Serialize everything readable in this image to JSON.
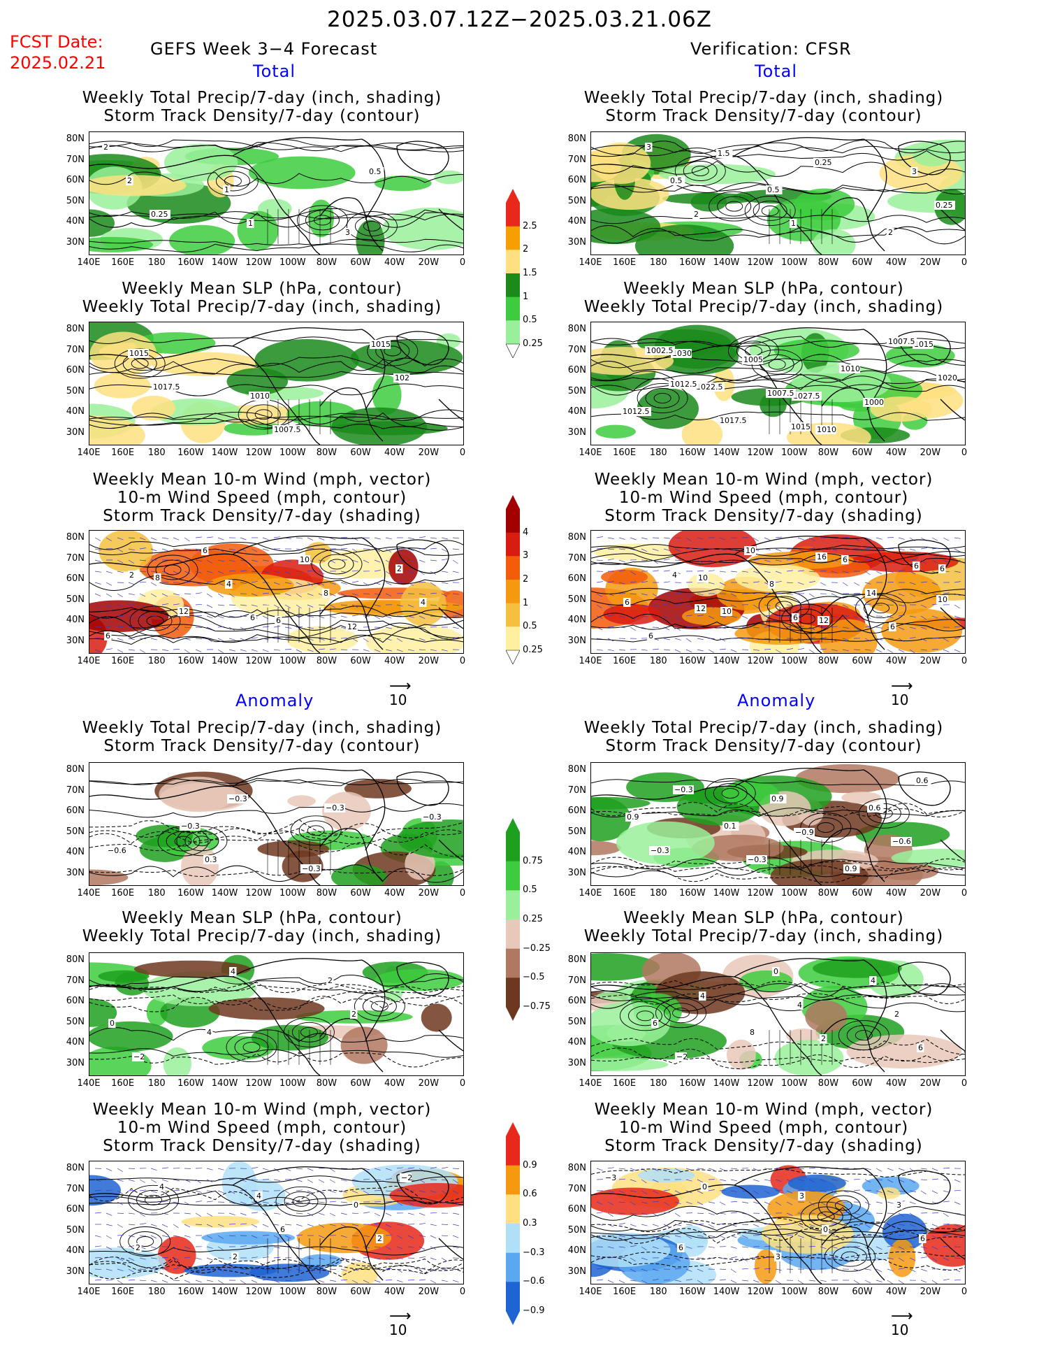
{
  "title": "2025.03.07.12Z−2025.03.21.06Z",
  "fcst_label": "FCST Date:",
  "fcst_date": "2025.02.21",
  "left_header": "GEFS Week 3−4 Forecast",
  "right_header": "Verification: CFSR",
  "section_total": "Total",
  "section_anomaly": "Anomaly",
  "panel_titles": {
    "precip_storm": [
      "Weekly Total Precip/7-day (inch, shading)",
      "Storm Track Density/7-day (contour)"
    ],
    "slp_precip": [
      "Weekly Mean SLP (hPa, contour)",
      "Weekly Total Precip/7-day (inch, shading)"
    ],
    "wind_storm": [
      "Weekly Mean 10-m Wind (mph, vector)",
      "10-m Wind Speed (mph, contour)",
      "Storm Track Density/7-day (shading)"
    ]
  },
  "lat_labels": [
    "80N",
    "70N",
    "60N",
    "50N",
    "40N",
    "30N"
  ],
  "lon_labels": [
    "140E",
    "160E",
    "180",
    "160W",
    "140W",
    "120W",
    "100W",
    "80W",
    "60W",
    "40W",
    "20W",
    "0"
  ],
  "vector_ref": "10",
  "colorbars": {
    "precip_total": {
      "labels": [
        "2.5",
        "2",
        "1.5",
        "1",
        "0.5",
        "0.25"
      ],
      "colors": [
        "#e8281a",
        "#f5a000",
        "#fee080",
        "#1a8a1a",
        "#3ecc3e",
        "#9af09a"
      ]
    },
    "storm_total": {
      "labels": [
        "4",
        "3",
        "2",
        "1",
        "0.5",
        "0.25"
      ],
      "colors": [
        "#a30000",
        "#d91c10",
        "#f25c0a",
        "#f59a10",
        "#f5c040",
        "#fff0a0"
      ]
    },
    "precip_anom": {
      "labels": [
        "0.75",
        "0.5",
        "0.25",
        "−0.25",
        "−0.5",
        "−0.75"
      ],
      "colors": [
        "#1ea01e",
        "#3ecc3e",
        "#9af09a",
        "#e8c8b8",
        "#b07860",
        "#6e3820"
      ]
    },
    "storm_anom": {
      "labels": [
        "0.9",
        "0.6",
        "0.3",
        "−0.3",
        "−0.6",
        "−0.9"
      ],
      "colors": [
        "#e8281a",
        "#f59a10",
        "#fee080",
        "#b0e0f8",
        "#5aa8f0",
        "#1e64d2"
      ]
    }
  },
  "contour_labels": {
    "f_tot_precip": [
      "2",
      "1",
      "3",
      "2",
      "1",
      "0.5",
      "0.25"
    ],
    "v_tot_precip": [
      "3",
      "0.5",
      "2",
      "0.5",
      "1",
      "3",
      "2",
      "0.25",
      "0.25",
      "1.5"
    ],
    "f_tot_slp": [
      "1015",
      "1010",
      "1015",
      "1017.5",
      "1007.5",
      "102"
    ],
    "v_tot_slp": [
      "1030",
      "1027.5",
      "1015",
      "1022.5",
      "1010",
      "1020",
      "1017.5",
      "1010",
      "1012.5",
      "1005",
      "1000",
      "1002.5",
      "1007.5",
      "1007.5",
      "1012.5",
      "1015"
    ],
    "f_tot_wind": [
      "8",
      "6",
      "2",
      "12",
      "10",
      "4",
      "6",
      "8",
      "6",
      "4",
      "12",
      "2",
      "6"
    ],
    "v_tot_wind": [
      "10",
      "12",
      "6",
      "10",
      "6",
      "6",
      "10",
      "14",
      "6",
      "8",
      "6",
      "4",
      "6",
      "6",
      "12",
      "16",
      "10"
    ],
    "f_ano_precip": [
      "−0.3",
      "−0.3",
      "−0.3",
      "0.3",
      "−0.3",
      "−0.6",
      "−0.3"
    ],
    "v_ano_precip": [
      "0.1",
      "0.9",
      "0.9",
      "−0.3",
      "0.6",
      "−0.3",
      "0.9",
      "−0.6",
      "−0.3",
      "−0.9",
      "0.6"
    ],
    "f_ano_slp": [
      "4",
      "2",
      "0",
      "4",
      "2",
      "−2"
    ],
    "v_ano_slp": [
      "8",
      "4",
      "6",
      "0",
      "2",
      "−2",
      "4",
      "6",
      "4",
      "2"
    ],
    "f_ano_wind": [
      "2",
      "0",
      "2",
      "4",
      "2",
      "4",
      "6",
      "−2"
    ],
    "v_ano_wind": [
      "3",
      "3",
      "6",
      "3",
      "6",
      "0",
      "0",
      "−3"
    ]
  }
}
